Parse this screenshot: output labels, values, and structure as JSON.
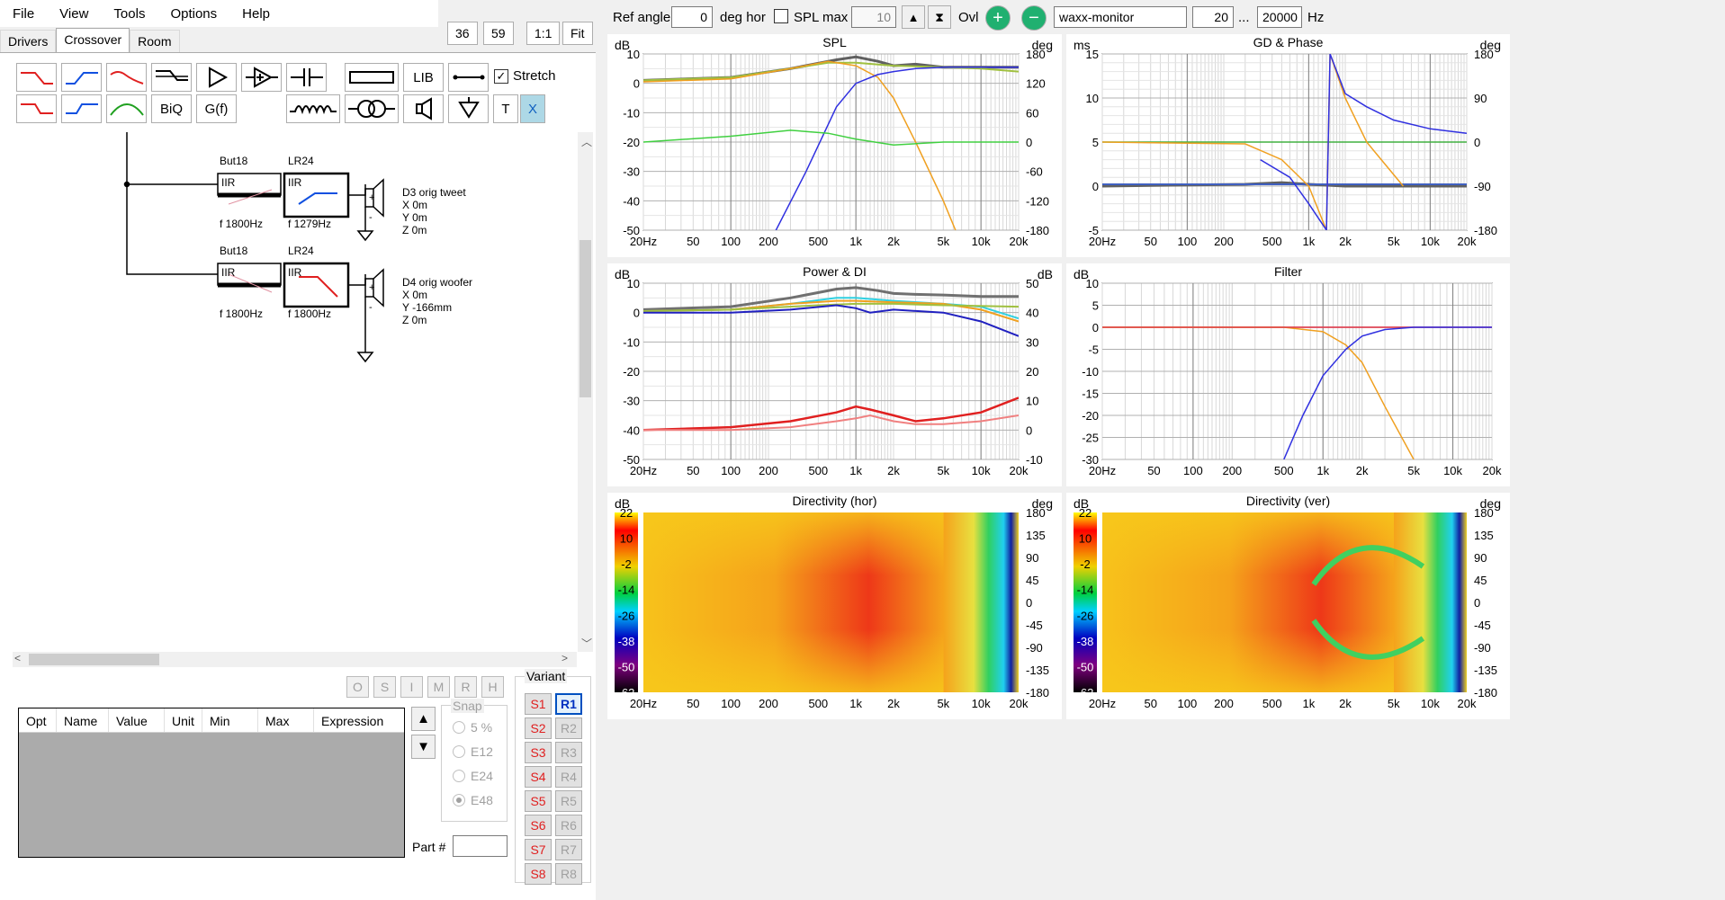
{
  "menu": [
    "File",
    "View",
    "Tools",
    "Options",
    "Help"
  ],
  "tabs": [
    "Drivers",
    "Crossover",
    "Room"
  ],
  "active_tab": "Crossover",
  "num_buttons": [
    "36",
    "59",
    "1:1",
    "Fit"
  ],
  "toolbar": {
    "lib": "LIB",
    "biq": "BiQ",
    "gf": "G(f)",
    "t": "T",
    "x": "X",
    "stretch": "Stretch",
    "stretch_checked": true
  },
  "schematic": {
    "tweeter_chain": {
      "filter1_type": "But18",
      "filter1_sub": "IIR",
      "filter1_freq": "f   1800Hz",
      "filter2_type": "LR24",
      "filter2_sub": "IIR",
      "filter2_freq": "f   1279Hz",
      "driver": "D3 orig tweet",
      "x": "X 0m",
      "y": "Y 0m",
      "z": "Z 0m"
    },
    "woofer_chain": {
      "filter1_type": "But18",
      "filter1_sub": "IIR",
      "filter1_freq": "f   1800Hz",
      "filter2_type": "LR24",
      "filter2_sub": "IIR",
      "filter2_freq": "f   1800Hz",
      "driver": "D4 orig woofer",
      "x": "X 0m",
      "y": "Y -166mm",
      "z": "Z 0m"
    }
  },
  "opt_buttons": [
    "O",
    "S",
    "I",
    "M",
    "R",
    "H"
  ],
  "param_grid_headers": [
    "Opt",
    "Name",
    "Value",
    "Unit",
    "Min",
    "Max",
    "Expression"
  ],
  "snap": {
    "label": "Snap",
    "options": [
      "5 %",
      "E12",
      "E24",
      "E48"
    ],
    "selected": "E48"
  },
  "part_label": "Part #",
  "variant": {
    "label": "Variant",
    "s": [
      "S1",
      "S2",
      "S3",
      "S4",
      "S5",
      "S6",
      "S7",
      "S8"
    ],
    "r": [
      "R1",
      "R2",
      "R3",
      "R4",
      "R5",
      "R6",
      "R7",
      "R8"
    ],
    "active": "R1"
  },
  "topbar": {
    "ref_angle_label": "Ref angle",
    "ref_angle": "0",
    "deg_hor": "deg hor",
    "spl_max_label": "SPL max",
    "spl_max": "10",
    "ovl": "Ovl",
    "preset": "waxx-monitor",
    "fmin": "20",
    "ellipsis": "...",
    "fmax": "20000",
    "hz": "Hz"
  },
  "x_ticks": [
    "20Hz",
    "50",
    "100",
    "200",
    "500",
    "1k",
    "2k",
    "5k",
    "10k",
    "20k"
  ],
  "charts": {
    "spl": {
      "title": "SPL",
      "left_unit": "dB",
      "right_unit": "deg",
      "y": [
        "10",
        "0",
        "-10",
        "-20",
        "-30",
        "-40",
        "-50"
      ],
      "y2": [
        "180",
        "120",
        "60",
        "0",
        "-60",
        "-120",
        "-180"
      ]
    },
    "gd": {
      "title": "GD & Phase",
      "left_unit": "ms",
      "right_unit": "deg",
      "y": [
        "15",
        "10",
        "5",
        "0",
        "-5"
      ],
      "y2": [
        "180",
        "90",
        "0",
        "-90",
        "-180"
      ]
    },
    "power": {
      "title": "Power & DI",
      "left_unit": "dB",
      "right_unit": "dB",
      "y": [
        "10",
        "0",
        "-10",
        "-20",
        "-30",
        "-40",
        "-50"
      ],
      "y2": [
        "50",
        "40",
        "30",
        "20",
        "10",
        "0",
        "-10"
      ]
    },
    "filter": {
      "title": "Filter",
      "left_unit": "dB",
      "y": [
        "10",
        "5",
        "0",
        "-5",
        "-10",
        "-15",
        "-20",
        "-25",
        "-30"
      ]
    },
    "dirh": {
      "title": "Directivity (hor)",
      "left_unit": "dB",
      "right_unit": "deg",
      "scale": [
        "22",
        "10",
        "-2",
        "-14",
        "-26",
        "-38",
        "-50",
        "-62"
      ],
      "y2": [
        "180",
        "135",
        "90",
        "45",
        "0",
        "-45",
        "-90",
        "-135",
        "-180"
      ]
    },
    "dirv": {
      "title": "Directivity (ver)",
      "left_unit": "dB",
      "right_unit": "deg",
      "scale": [
        "22",
        "10",
        "-2",
        "-14",
        "-26",
        "-38",
        "-50",
        "-62"
      ],
      "y2": [
        "180",
        "135",
        "90",
        "45",
        "0",
        "-45",
        "-90",
        "-135",
        "-180"
      ]
    }
  }
}
